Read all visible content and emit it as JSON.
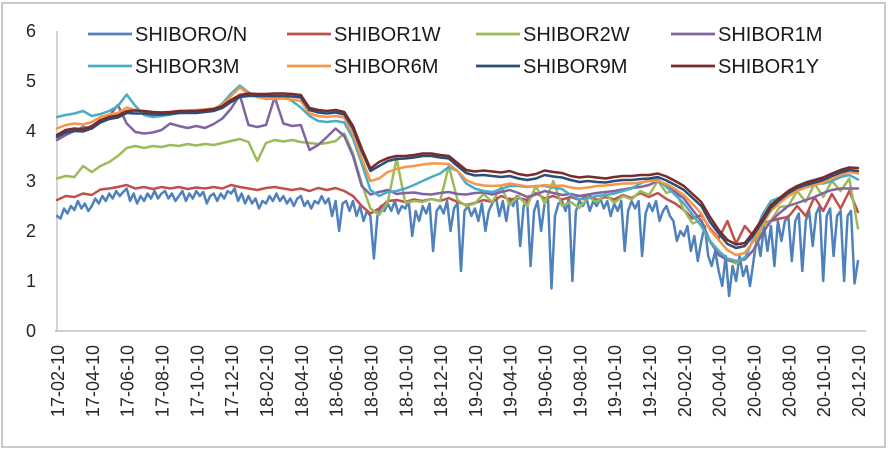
{
  "chart_data": {
    "type": "line",
    "title": "",
    "xlabel": "",
    "ylabel": "",
    "grid": false,
    "legend_position": "top",
    "axis_color": "#bfbfbf",
    "text_color": "#262626",
    "y_ticks": [
      0,
      1,
      2,
      3,
      4,
      5,
      6
    ],
    "y_max": 6,
    "x_unit": "months since 2017-02-10",
    "x_range_months": [
      0,
      46
    ],
    "x_tick_month_step": 2,
    "x_ticklabels": [
      "17-02-10",
      "17-04-10",
      "17-06-10",
      "17-08-10",
      "17-10-10",
      "17-12-10",
      "18-02-10",
      "18-04-10",
      "18-06-10",
      "18-08-10",
      "18-10-10",
      "18-12-10",
      "19-02-10",
      "19-04-10",
      "19-06-10",
      "19-08-10",
      "19-10-10",
      "19-12-10",
      "20-02-10",
      "20-04-10",
      "20-06-10",
      "20-08-10",
      "20-10-10",
      "20-12-10"
    ],
    "series": [
      {
        "name": "SHIBORO/N",
        "color": "#4F81BD",
        "x0": 0,
        "dx": 0.2,
        "values": [
          2.3,
          2.25,
          2.45,
          2.35,
          2.5,
          2.42,
          2.6,
          2.45,
          2.55,
          2.4,
          2.5,
          2.65,
          2.55,
          2.7,
          2.6,
          2.75,
          2.65,
          2.8,
          2.7,
          2.78,
          2.85,
          2.6,
          2.75,
          2.55,
          2.7,
          2.6,
          2.75,
          2.65,
          2.8,
          2.65,
          2.75,
          2.8,
          2.65,
          2.75,
          2.6,
          2.7,
          2.8,
          2.6,
          2.75,
          2.65,
          2.8,
          2.7,
          2.78,
          2.55,
          2.7,
          2.75,
          2.6,
          2.75,
          2.65,
          2.8,
          2.75,
          2.85,
          2.6,
          2.75,
          2.55,
          2.7,
          2.55,
          2.65,
          2.45,
          2.6,
          2.55,
          2.7,
          2.6,
          2.75,
          2.6,
          2.7,
          2.55,
          2.65,
          2.5,
          2.65,
          2.7,
          2.5,
          2.6,
          2.45,
          2.6,
          2.55,
          2.7,
          2.55,
          2.65,
          2.3,
          2.6,
          2.0,
          2.55,
          2.6,
          2.4,
          2.6,
          2.3,
          2.5,
          2.2,
          2.4,
          2.3,
          1.45,
          2.3,
          2.5,
          2.4,
          2.55,
          2.4,
          2.6,
          2.35,
          2.5,
          2.45,
          2.6,
          1.9,
          2.4,
          2.2,
          2.5,
          2.35,
          2.55,
          1.6,
          2.4,
          2.5,
          2.35,
          2.6,
          2.0,
          2.45,
          2.55,
          1.2,
          2.4,
          2.5,
          2.3,
          2.45,
          2.2,
          2.55,
          2.0,
          2.4,
          2.55,
          2.7,
          2.3,
          2.6,
          2.2,
          2.65,
          2.5,
          2.7,
          1.7,
          2.5,
          2.6,
          1.3,
          2.4,
          2.6,
          2.0,
          2.55,
          2.65,
          0.85,
          2.3,
          2.55,
          2.6,
          2.4,
          2.65,
          1.0,
          2.4,
          2.6,
          2.5,
          2.65,
          2.4,
          2.6,
          2.5,
          2.65,
          2.45,
          2.6,
          2.3,
          2.55,
          2.4,
          2.6,
          1.6,
          2.4,
          2.6,
          2.45,
          2.6,
          1.5,
          2.35,
          2.55,
          2.4,
          2.6,
          2.2,
          2.4,
          2.5,
          2.3,
          2.2,
          1.8,
          2.0,
          1.9,
          2.1,
          1.6,
          1.9,
          1.4,
          1.8,
          2.1,
          1.5,
          1.3,
          1.6,
          1.2,
          0.9,
          1.5,
          0.7,
          1.3,
          1.0,
          1.5,
          1.1,
          1.3,
          0.9,
          1.4,
          1.9,
          1.5,
          2.1,
          1.6,
          2.1,
          1.3,
          2.2,
          1.8,
          2.2,
          2.3,
          1.4,
          2.2,
          2.35,
          1.2,
          2.2,
          2.4,
          1.7,
          2.35,
          2.5,
          1.0,
          2.3,
          2.45,
          1.5,
          2.3,
          2.4,
          1.0,
          2.3,
          2.4,
          0.95,
          1.4
        ]
      },
      {
        "name": "SHIBOR1W",
        "color": "#C0504D",
        "x0": 0,
        "dx": 0.5,
        "values": [
          2.62,
          2.7,
          2.68,
          2.75,
          2.72,
          2.83,
          2.85,
          2.88,
          2.92,
          2.85,
          2.88,
          2.84,
          2.88,
          2.85,
          2.88,
          2.84,
          2.87,
          2.85,
          2.88,
          2.85,
          2.92,
          2.88,
          2.85,
          2.82,
          2.86,
          2.88,
          2.85,
          2.82,
          2.85,
          2.8,
          2.86,
          2.82,
          2.86,
          2.8,
          2.7,
          2.5,
          2.35,
          2.45,
          2.6,
          2.62,
          2.58,
          2.63,
          2.6,
          2.64,
          2.6,
          2.66,
          2.58,
          2.52,
          2.56,
          2.62,
          2.58,
          2.7,
          2.63,
          2.66,
          2.62,
          2.76,
          2.65,
          2.7,
          2.63,
          2.68,
          2.62,
          2.72,
          2.62,
          2.68,
          2.63,
          2.72,
          2.66,
          2.76,
          2.68,
          2.76,
          2.64,
          2.55,
          2.42,
          2.25,
          2.32,
          2.05,
          1.85,
          2.2,
          1.75,
          2.1,
          1.9,
          2.15,
          2.2,
          2.25,
          2.28,
          2.5,
          2.3,
          2.68,
          2.4,
          2.74,
          2.45,
          2.8,
          2.38
        ]
      },
      {
        "name": "SHIBOR2W",
        "color": "#9BBB59",
        "x0": 0,
        "dx": 0.5,
        "values": [
          3.05,
          3.1,
          3.08,
          3.3,
          3.18,
          3.3,
          3.38,
          3.5,
          3.66,
          3.7,
          3.66,
          3.7,
          3.68,
          3.72,
          3.7,
          3.74,
          3.71,
          3.74,
          3.72,
          3.76,
          3.8,
          3.84,
          3.78,
          3.4,
          3.76,
          3.82,
          3.79,
          3.82,
          3.78,
          3.76,
          3.74,
          3.76,
          3.8,
          3.95,
          3.55,
          2.95,
          2.45,
          2.32,
          2.58,
          3.45,
          2.56,
          2.6,
          2.58,
          2.64,
          2.6,
          3.3,
          2.62,
          2.5,
          2.55,
          2.74,
          2.58,
          2.88,
          2.52,
          2.7,
          2.5,
          2.9,
          2.55,
          3.0,
          2.5,
          2.58,
          2.46,
          2.68,
          2.58,
          2.74,
          2.56,
          2.7,
          2.63,
          2.8,
          2.72,
          3.0,
          2.76,
          2.82,
          2.42,
          2.15,
          2.22,
          1.78,
          1.55,
          1.42,
          1.35,
          1.48,
          1.6,
          2.1,
          2.2,
          2.48,
          2.5,
          2.8,
          2.58,
          2.95,
          2.68,
          3.0,
          2.8,
          3.05,
          2.05
        ]
      },
      {
        "name": "SHIBOR1M",
        "color": "#8064A2",
        "x0": 0,
        "dx": 0.5,
        "values": [
          3.82,
          3.92,
          4.0,
          4.08,
          4.05,
          4.18,
          4.3,
          4.52,
          4.15,
          3.98,
          3.95,
          3.97,
          4.02,
          4.15,
          4.1,
          4.06,
          4.1,
          4.06,
          4.14,
          4.25,
          4.45,
          4.72,
          4.12,
          4.08,
          4.12,
          4.68,
          4.15,
          4.1,
          4.12,
          3.62,
          3.72,
          3.88,
          4.05,
          3.9,
          3.5,
          2.9,
          2.73,
          2.78,
          2.82,
          2.74,
          2.76,
          2.77,
          2.74,
          2.73,
          2.76,
          2.78,
          2.74,
          2.73,
          2.76,
          2.77,
          2.73,
          2.78,
          2.82,
          2.76,
          2.68,
          2.73,
          2.8,
          2.76,
          2.72,
          2.74,
          2.7,
          2.73,
          2.76,
          2.78,
          2.8,
          2.83,
          2.86,
          2.88,
          2.92,
          3.0,
          2.9,
          2.78,
          2.65,
          2.42,
          2.2,
          1.8,
          1.52,
          1.42,
          1.4,
          1.43,
          1.62,
          1.95,
          2.2,
          2.36,
          2.5,
          2.56,
          2.62,
          2.68,
          2.76,
          2.82,
          2.85,
          2.85,
          2.85
        ]
      },
      {
        "name": "SHIBOR3M",
        "color": "#4BACC6",
        "x0": 0,
        "dx": 0.5,
        "values": [
          4.28,
          4.32,
          4.35,
          4.4,
          4.3,
          4.34,
          4.4,
          4.5,
          4.73,
          4.5,
          4.32,
          4.28,
          4.3,
          4.33,
          4.36,
          4.38,
          4.39,
          4.4,
          4.42,
          4.55,
          4.75,
          4.91,
          4.77,
          4.7,
          4.64,
          4.68,
          4.7,
          4.6,
          4.47,
          4.3,
          4.2,
          4.18,
          4.2,
          4.17,
          3.85,
          3.35,
          2.82,
          2.7,
          2.78,
          2.8,
          2.85,
          2.92,
          3.0,
          3.08,
          3.15,
          3.28,
          3.2,
          2.95,
          2.85,
          2.8,
          2.78,
          2.84,
          2.9,
          2.9,
          2.88,
          2.9,
          2.9,
          2.87,
          2.84,
          2.72,
          2.63,
          2.66,
          2.7,
          2.72,
          2.75,
          2.8,
          2.85,
          2.95,
          3.02,
          3.03,
          2.88,
          2.72,
          2.55,
          2.32,
          2.1,
          1.8,
          1.6,
          1.45,
          1.4,
          1.45,
          1.85,
          2.32,
          2.6,
          2.67,
          2.72,
          2.8,
          2.9,
          2.95,
          2.95,
          3.0,
          3.08,
          3.12,
          3.03
        ]
      },
      {
        "name": "SHIBOR6M",
        "color": "#F79646",
        "x0": 0,
        "dx": 0.5,
        "values": [
          4.05,
          4.12,
          4.15,
          4.13,
          4.18,
          4.28,
          4.33,
          4.36,
          4.47,
          4.42,
          4.38,
          4.37,
          4.37,
          4.38,
          4.4,
          4.41,
          4.42,
          4.43,
          4.45,
          4.52,
          4.7,
          4.87,
          4.74,
          4.68,
          4.65,
          4.64,
          4.65,
          4.63,
          4.6,
          4.35,
          4.3,
          4.28,
          4.3,
          4.27,
          3.95,
          3.45,
          3.0,
          3.05,
          3.18,
          3.24,
          3.28,
          3.3,
          3.33,
          3.35,
          3.35,
          3.34,
          3.2,
          3.02,
          2.94,
          2.91,
          2.9,
          2.91,
          2.95,
          2.92,
          2.89,
          2.89,
          2.92,
          2.9,
          2.91,
          2.87,
          2.85,
          2.87,
          2.9,
          2.91,
          2.93,
          2.95,
          2.95,
          2.97,
          3.0,
          3.0,
          2.94,
          2.84,
          2.72,
          2.54,
          2.35,
          2.02,
          1.82,
          1.62,
          1.52,
          1.56,
          1.8,
          2.12,
          2.4,
          2.56,
          2.7,
          2.8,
          2.87,
          2.92,
          2.97,
          3.05,
          3.12,
          3.18,
          3.15
        ]
      },
      {
        "name": "SHIBOR9M",
        "color": "#2C4D75",
        "x0": 0,
        "dx": 0.5,
        "values": [
          3.88,
          3.97,
          4.0,
          3.99,
          4.05,
          4.17,
          4.24,
          4.27,
          4.36,
          4.35,
          4.35,
          4.33,
          4.33,
          4.34,
          4.36,
          4.36,
          4.36,
          4.38,
          4.4,
          4.46,
          4.58,
          4.68,
          4.7,
          4.7,
          4.7,
          4.7,
          4.7,
          4.69,
          4.67,
          4.42,
          4.37,
          4.35,
          4.37,
          4.33,
          4.05,
          3.6,
          3.2,
          3.3,
          3.4,
          3.44,
          3.45,
          3.47,
          3.5,
          3.5,
          3.47,
          3.45,
          3.3,
          3.16,
          3.11,
          3.12,
          3.1,
          3.08,
          3.1,
          3.05,
          3.02,
          3.05,
          3.12,
          3.09,
          3.07,
          3.02,
          2.98,
          3.0,
          2.98,
          2.97,
          3.0,
          3.02,
          3.02,
          3.04,
          3.05,
          3.08,
          3.01,
          2.92,
          2.82,
          2.66,
          2.5,
          2.18,
          1.95,
          1.74,
          1.66,
          1.7,
          1.92,
          2.18,
          2.46,
          2.62,
          2.76,
          2.86,
          2.92,
          2.97,
          3.02,
          3.1,
          3.17,
          3.22,
          3.2
        ]
      },
      {
        "name": "SHIBOR1Y",
        "color": "#772C2A",
        "x0": 0,
        "dx": 0.5,
        "values": [
          3.92,
          4.02,
          4.05,
          4.03,
          4.1,
          4.22,
          4.28,
          4.31,
          4.4,
          4.41,
          4.4,
          4.38,
          4.37,
          4.38,
          4.4,
          4.4,
          4.4,
          4.42,
          4.44,
          4.5,
          4.62,
          4.72,
          4.75,
          4.74,
          4.74,
          4.75,
          4.75,
          4.74,
          4.72,
          4.46,
          4.42,
          4.4,
          4.42,
          4.38,
          4.1,
          3.65,
          3.25,
          3.38,
          3.46,
          3.5,
          3.5,
          3.52,
          3.55,
          3.55,
          3.52,
          3.5,
          3.36,
          3.22,
          3.19,
          3.21,
          3.19,
          3.17,
          3.2,
          3.14,
          3.11,
          3.14,
          3.21,
          3.18,
          3.16,
          3.1,
          3.07,
          3.09,
          3.07,
          3.05,
          3.08,
          3.1,
          3.1,
          3.12,
          3.12,
          3.15,
          3.09,
          3.0,
          2.9,
          2.74,
          2.58,
          2.28,
          2.02,
          1.82,
          1.73,
          1.76,
          1.98,
          2.24,
          2.52,
          2.66,
          2.8,
          2.9,
          2.97,
          3.02,
          3.07,
          3.15,
          3.22,
          3.27,
          3.26
        ]
      }
    ]
  }
}
